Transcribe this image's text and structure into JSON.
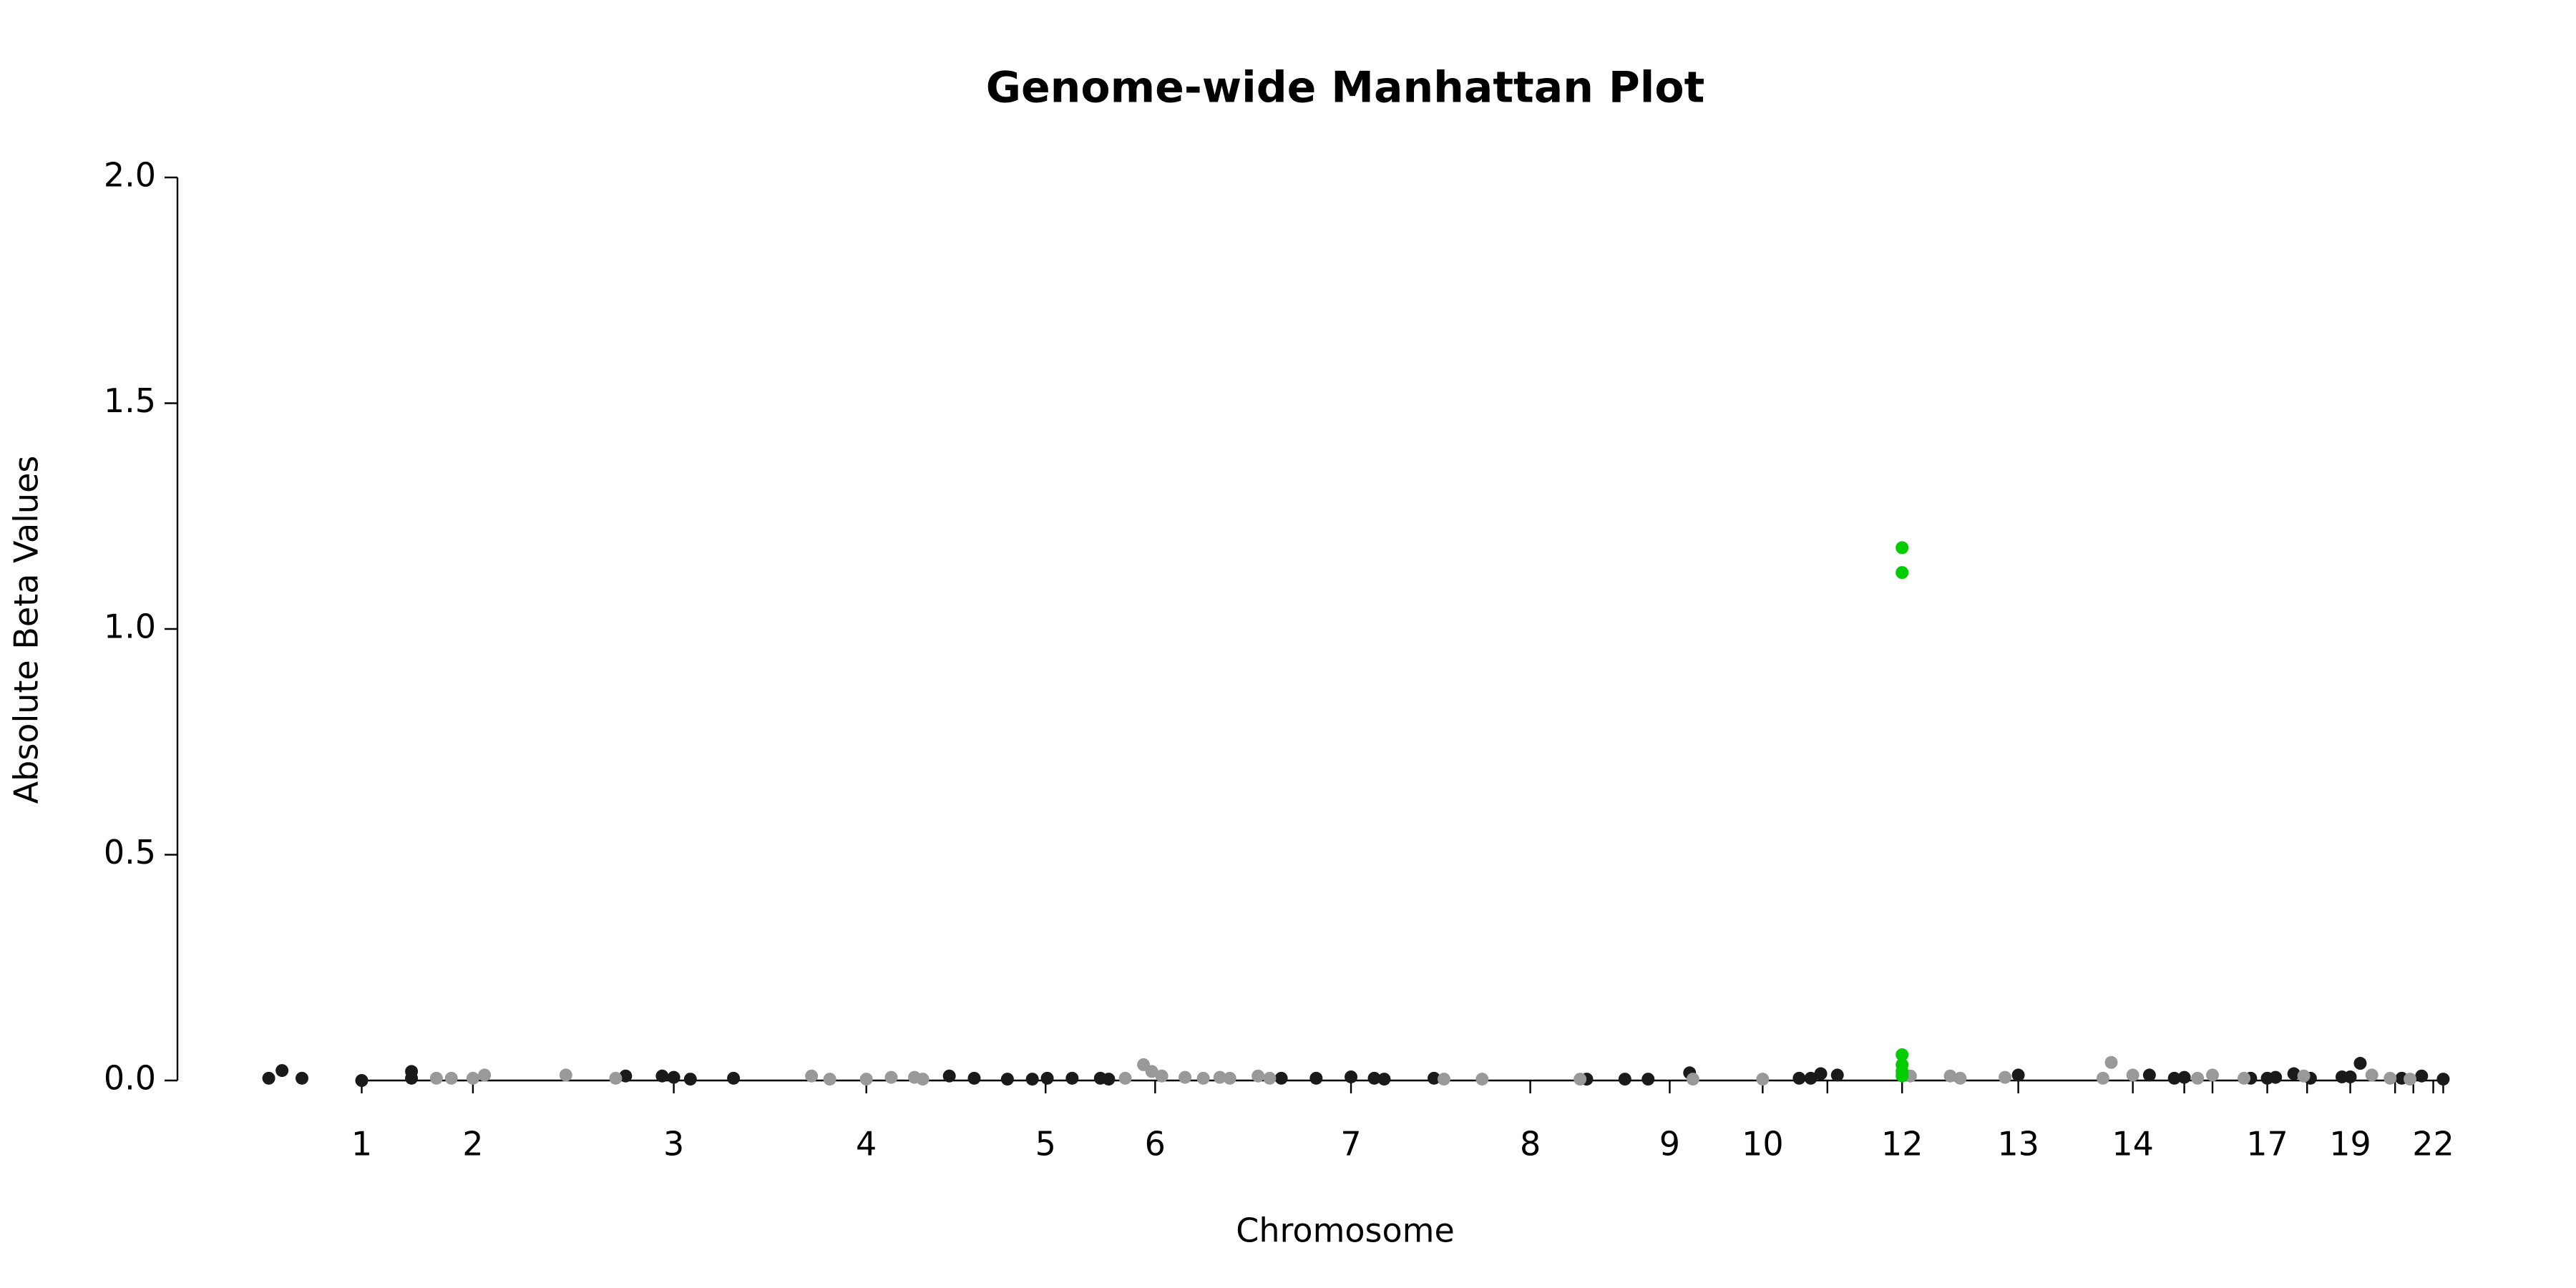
{
  "chart_data": {
    "type": "scatter",
    "title": "Genome-wide Manhattan Plot",
    "x_label": "Chromosome",
    "y_label": "Absolute Beta Values",
    "xlim": [
      107,
      1480
    ],
    "ylim": [
      0,
      2.0
    ],
    "yticks": [
      {
        "value": 0,
        "label": "0.0"
      },
      {
        "value": 0.5,
        "label": "0.5"
      },
      {
        "value": 1,
        "label": "1.0"
      },
      {
        "value": 1.5,
        "label": "1.5"
      },
      {
        "value": 2,
        "label": "2.0"
      }
    ],
    "xticks": [
      {
        "value": 218,
        "label": "1"
      },
      {
        "value": 285,
        "label": "2"
      },
      {
        "value": 406,
        "label": "3"
      },
      {
        "value": 522,
        "label": "4"
      },
      {
        "value": 630,
        "label": "5"
      },
      {
        "value": 696,
        "label": "6"
      },
      {
        "value": 814,
        "label": "7"
      },
      {
        "value": 922,
        "label": "8"
      },
      {
        "value": 1006,
        "label": "9"
      },
      {
        "value": 1062,
        "label": "10"
      },
      {
        "value": 1101,
        "label": null
      },
      {
        "value": 1146,
        "label": "12"
      },
      {
        "value": 1216,
        "label": "13"
      },
      {
        "value": 1285,
        "label": "14"
      },
      {
        "value": 1316,
        "label": null
      },
      {
        "value": 1333,
        "label": null
      },
      {
        "value": 1366,
        "label": "17"
      },
      {
        "value": 1390,
        "label": null
      },
      {
        "value": 1416,
        "label": "19"
      },
      {
        "value": 1443,
        "label": null
      },
      {
        "value": 1454,
        "label": null
      },
      {
        "value": 1466,
        "label": "22"
      },
      {
        "value": 1472,
        "label": null
      }
    ],
    "series": [
      {
        "color": "#1a1a1a",
        "x": [
          162,
          170,
          182,
          218,
          248,
          248,
          377,
          399,
          406,
          416,
          442,
          572,
          587,
          607,
          622,
          631,
          646,
          663,
          668,
          772,
          793,
          814,
          828,
          834,
          864,
          956,
          979,
          993,
          1018,
          1084,
          1091,
          1097,
          1107,
          1216,
          1295,
          1310,
          1316,
          1356,
          1366,
          1371,
          1382,
          1392,
          1411,
          1416,
          1422,
          1447,
          1459,
          1472
        ],
        "values": [
          0.005,
          0.022,
          0.005,
          0,
          0.02,
          0.005,
          0.01,
          0.01,
          0.007,
          0.003,
          0.005,
          0.01,
          0.005,
          0.003,
          0.003,
          0.005,
          0.005,
          0.005,
          0.003,
          0.005,
          0.005,
          0.008,
          0.005,
          0.003,
          0.005,
          0.003,
          0.003,
          0.003,
          0.017,
          0.005,
          0.005,
          0.015,
          0.012,
          0.012,
          0.012,
          0.005,
          0.007,
          0.005,
          0.005,
          0.007,
          0.015,
          0.005,
          0.008,
          0.008,
          0.038,
          0.005,
          0.01,
          0.003
        ]
      },
      {
        "color": "#999999",
        "x": [
          263,
          272,
          285,
          292,
          341,
          371,
          489,
          500,
          522,
          537,
          551,
          556,
          678,
          689,
          694,
          700,
          714,
          725,
          735,
          741,
          758,
          765,
          870,
          893,
          952,
          1020,
          1062,
          1151,
          1175,
          1181,
          1208,
          1267,
          1272,
          1285,
          1324,
          1333,
          1352,
          1388,
          1429,
          1440,
          1452
        ],
        "values": [
          0.005,
          0.005,
          0.005,
          0.012,
          0.012,
          0.005,
          0.01,
          0.003,
          0.003,
          0.007,
          0.007,
          0.003,
          0.005,
          0.035,
          0.02,
          0.01,
          0.007,
          0.005,
          0.007,
          0.005,
          0.01,
          0.005,
          0.003,
          0.003,
          0.003,
          0.003,
          0.003,
          0.01,
          0.01,
          0.005,
          0.007,
          0.005,
          0.04,
          0.012,
          0.005,
          0.012,
          0.005,
          0.01,
          0.012,
          0.005,
          0.003
        ]
      },
      {
        "color": "#00cc00",
        "x": [
          1146,
          1146,
          1146,
          1146,
          1146,
          1146
        ],
        "values": [
          1.18,
          1.125,
          0.057,
          0.035,
          0.02,
          0.01
        ]
      }
    ]
  }
}
